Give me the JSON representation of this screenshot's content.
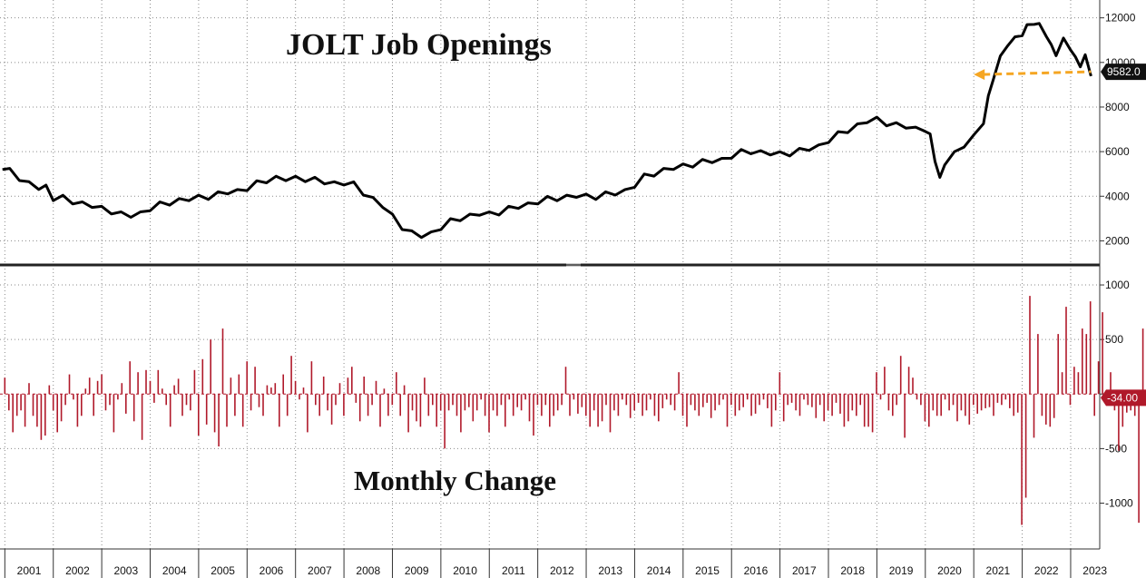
{
  "colors": {
    "line": "#000000",
    "bar": "#b0192a",
    "highlight": "#f5a623",
    "grid": "#8a8a8a",
    "divider": "#222222"
  },
  "chart_data": [
    {
      "type": "line",
      "title": "JOLT Job Openings",
      "ylim": [
        1000,
        12800
      ],
      "yticks": [
        2000,
        4000,
        6000,
        8000,
        10000,
        12000
      ],
      "ytick_labels": [
        "2000",
        "4000",
        "6000",
        "8000",
        "10000",
        "12000"
      ],
      "xlim": [
        2000.9,
        2023.6
      ],
      "last_value_label": "9582.0",
      "reference_value": 9582,
      "reference_start": 2021.0,
      "series": [
        {
          "values": [
            [
              2000.95,
              5200
            ],
            [
              2001.1,
              5150
            ],
            [
              2001.3,
              4900
            ],
            [
              2001.5,
              4600
            ],
            [
              2001.7,
              4450
            ],
            [
              2001.85,
              4500
            ],
            [
              2002.0,
              3900
            ],
            [
              2002.2,
              3850
            ],
            [
              2002.4,
              3700
            ],
            [
              2002.6,
              3600
            ],
            [
              2002.8,
              3500
            ],
            [
              2003.0,
              3450
            ],
            [
              2003.2,
              3400
            ],
            [
              2003.4,
              3250
            ],
            [
              2003.6,
              3200
            ],
            [
              2003.8,
              3300
            ],
            [
              2004.0,
              3450
            ],
            [
              2004.2,
              3550
            ],
            [
              2004.4,
              3650
            ],
            [
              2004.6,
              3750
            ],
            [
              2004.8,
              3800
            ],
            [
              2005.0,
              3950
            ],
            [
              2005.2,
              4050
            ],
            [
              2005.4,
              4150
            ],
            [
              2005.6,
              4250
            ],
            [
              2005.8,
              4300
            ],
            [
              2006.0,
              4350
            ],
            [
              2006.2,
              4500
            ],
            [
              2006.4,
              4650
            ],
            [
              2006.6,
              4750
            ],
            [
              2006.8,
              4700
            ],
            [
              2007.0,
              4800
            ],
            [
              2007.2,
              4850
            ],
            [
              2007.4,
              4800
            ],
            [
              2007.6,
              4700
            ],
            [
              2007.8,
              4650
            ],
            [
              2008.0,
              4600
            ],
            [
              2008.2,
              4450
            ],
            [
              2008.4,
              4100
            ],
            [
              2008.6,
              3800
            ],
            [
              2008.8,
              3500
            ],
            [
              2009.0,
              3100
            ],
            [
              2009.2,
              2700
            ],
            [
              2009.4,
              2400
            ],
            [
              2009.6,
              2300
            ],
            [
              2009.8,
              2400
            ],
            [
              2010.0,
              2600
            ],
            [
              2010.2,
              2800
            ],
            [
              2010.4,
              2950
            ],
            [
              2010.6,
              3050
            ],
            [
              2010.8,
              3150
            ],
            [
              2011.0,
              3200
            ],
            [
              2011.2,
              3350
            ],
            [
              2011.4,
              3500
            ],
            [
              2011.6,
              3600
            ],
            [
              2011.8,
              3700
            ],
            [
              2012.0,
              3750
            ],
            [
              2012.2,
              3800
            ],
            [
              2012.4,
              3850
            ],
            [
              2012.6,
              3900
            ],
            [
              2012.8,
              3950
            ],
            [
              2013.0,
              4000
            ],
            [
              2013.2,
              4050
            ],
            [
              2013.4,
              4150
            ],
            [
              2013.6,
              4200
            ],
            [
              2013.8,
              4300
            ],
            [
              2014.0,
              4500
            ],
            [
              2014.2,
              4800
            ],
            [
              2014.4,
              4950
            ],
            [
              2014.6,
              5100
            ],
            [
              2014.8,
              5200
            ],
            [
              2015.0,
              5350
            ],
            [
              2015.2,
              5500
            ],
            [
              2015.4,
              5600
            ],
            [
              2015.6,
              5650
            ],
            [
              2015.8,
              5700
            ],
            [
              2016.0,
              5800
            ],
            [
              2016.2,
              5900
            ],
            [
              2016.4,
              5950
            ],
            [
              2016.6,
              5900
            ],
            [
              2016.8,
              5850
            ],
            [
              2017.0,
              5900
            ],
            [
              2017.2,
              6000
            ],
            [
              2017.4,
              6100
            ],
            [
              2017.6,
              6200
            ],
            [
              2017.8,
              6300
            ],
            [
              2018.0,
              6500
            ],
            [
              2018.2,
              6700
            ],
            [
              2018.4,
              6900
            ],
            [
              2018.6,
              7100
            ],
            [
              2018.8,
              7300
            ],
            [
              2019.0,
              7450
            ],
            [
              2019.2,
              7350
            ],
            [
              2019.4,
              7250
            ],
            [
              2019.6,
              7200
            ],
            [
              2019.8,
              7100
            ],
            [
              2020.0,
              7000
            ],
            [
              2020.1,
              6600
            ],
            [
              2020.2,
              5600
            ],
            [
              2020.3,
              4700
            ],
            [
              2020.4,
              5400
            ],
            [
              2020.6,
              5900
            ],
            [
              2020.8,
              6400
            ],
            [
              2021.0,
              6700
            ],
            [
              2021.2,
              7400
            ],
            [
              2021.3,
              8500
            ],
            [
              2021.4,
              9300
            ],
            [
              2021.55,
              10100
            ],
            [
              2021.7,
              10800
            ],
            [
              2021.85,
              11000
            ],
            [
              2022.0,
              11200
            ],
            [
              2022.1,
              11600
            ],
            [
              2022.25,
              11900
            ],
            [
              2022.35,
              11700
            ],
            [
              2022.5,
              11300
            ],
            [
              2022.6,
              10800
            ],
            [
              2022.7,
              10400
            ],
            [
              2022.85,
              10900
            ],
            [
              2023.0,
              10600
            ],
            [
              2023.1,
              10100
            ],
            [
              2023.2,
              9800
            ],
            [
              2023.3,
              10250
            ],
            [
              2023.42,
              9582
            ]
          ]
        }
      ]
    },
    {
      "type": "bar",
      "title": "Monthly Change",
      "ylim": [
        -1420,
        1150
      ],
      "yticks": [
        -1000,
        -500,
        0,
        500,
        1000
      ],
      "ytick_labels": [
        "-1000",
        "-500",
        "",
        "500",
        "1000"
      ],
      "last_value_label": "-34.00",
      "x_start": 2001.0,
      "x_step": 0.0833,
      "values": [
        150,
        -150,
        -350,
        -200,
        -150,
        -300,
        100,
        -200,
        -300,
        -420,
        -380,
        80,
        -150,
        -350,
        -250,
        -100,
        180,
        -50,
        -300,
        -200,
        50,
        150,
        -200,
        120,
        180,
        -150,
        -100,
        -350,
        -50,
        100,
        -180,
        300,
        -250,
        200,
        -420,
        220,
        120,
        -80,
        220,
        50,
        -100,
        -300,
        80,
        140,
        -200,
        -100,
        -150,
        220,
        -380,
        320,
        -280,
        500,
        -350,
        -480,
        600,
        -300,
        150,
        -200,
        180,
        -300,
        300,
        -150,
        250,
        -120,
        -200,
        80,
        60,
        100,
        -300,
        180,
        -200,
        350,
        120,
        -50,
        60,
        -350,
        300,
        -100,
        -200,
        160,
        -150,
        -280,
        -100,
        100,
        -200,
        150,
        250,
        -80,
        -250,
        160,
        -200,
        -100,
        120,
        -300,
        50,
        -200,
        -100,
        200,
        -200,
        80,
        -350,
        -150,
        -250,
        -300,
        150,
        -200,
        -100,
        -300,
        -150,
        -500,
        -150,
        -100,
        -200,
        -350,
        -150,
        -120,
        -250,
        -150,
        -50,
        -200,
        -350,
        -150,
        -200,
        -100,
        -300,
        -50,
        -200,
        -120,
        -150,
        -50,
        -250,
        -380,
        -100,
        -200,
        -100,
        -300,
        -200,
        -150,
        -100,
        250,
        -200,
        -50,
        -180,
        -120,
        -200,
        -300,
        -150,
        -300,
        -250,
        -100,
        -350,
        -150,
        -200,
        -50,
        -100,
        -220,
        -150,
        -80,
        -200,
        -150,
        -50,
        -200,
        -250,
        -130,
        -50,
        -100,
        -150,
        200,
        -200,
        -300,
        -100,
        -150,
        -200,
        -120,
        -80,
        -220,
        -150,
        -100,
        -50,
        -300,
        -100,
        -200,
        -150,
        -120,
        -50,
        -200,
        -180,
        -100,
        -50,
        -130,
        -300,
        -150,
        200,
        -250,
        -100,
        -80,
        -150,
        -200,
        -50,
        -100,
        -120,
        -220,
        -100,
        -250,
        -150,
        -200,
        -80,
        -180,
        -300,
        -250,
        -150,
        -200,
        -100,
        -300,
        -300,
        -350,
        200,
        -50,
        250,
        -150,
        -200,
        -100,
        350,
        -400,
        250,
        150,
        -50,
        -100,
        -250,
        -300,
        -150,
        -200,
        -200,
        -50,
        -150,
        -100,
        -250,
        -150,
        -200,
        -280,
        -100,
        -180,
        -150,
        -130,
        -120,
        -200,
        -80,
        -100,
        -50,
        -130,
        -200,
        -170,
        -1200,
        -950,
        900,
        -400,
        550,
        -200,
        -280,
        -300,
        -220,
        550,
        200,
        800,
        -100,
        250,
        200,
        600,
        550,
        850,
        -200,
        300,
        750,
        -100,
        200,
        -150,
        -520,
        -300,
        -170,
        -150,
        -200,
        -1180,
        600,
        -300,
        -400,
        -630,
        -230,
        -600,
        -34
      ]
    }
  ],
  "x_axis": {
    "labels": [
      "2001",
      "2002",
      "2003",
      "2004",
      "2005",
      "2006",
      "2007",
      "2008",
      "2009",
      "2010",
      "2011",
      "2012",
      "2013",
      "2014",
      "2015",
      "2016",
      "2017",
      "2018",
      "2019",
      "2020",
      "2021",
      "2022",
      "2023"
    ]
  }
}
